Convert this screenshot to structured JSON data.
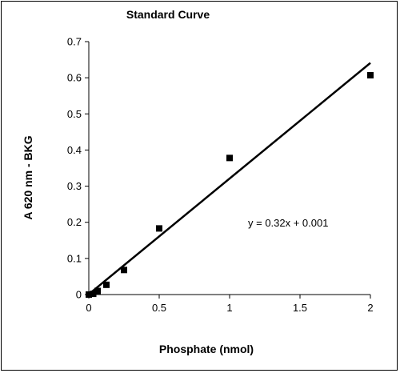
{
  "chart_data": {
    "type": "scatter",
    "title": "Standard Curve",
    "xlabel": "Phosphate (nmol)",
    "ylabel": "A 620 nm - BKG",
    "xlim": [
      0,
      2
    ],
    "ylim": [
      0,
      0.7
    ],
    "x_ticks": [
      "0",
      "0.5",
      "1",
      "1.5",
      "2"
    ],
    "y_ticks": [
      "0",
      "0.1",
      "0.2",
      "0.3",
      "0.4",
      "0.5",
      "0.6",
      "0.7"
    ],
    "grid": false,
    "legend": "none",
    "series": [
      {
        "marker": "square",
        "color": "#000000",
        "x": [
          0,
          0.03125,
          0.0625,
          0.125,
          0.25,
          0.5,
          1,
          2
        ],
        "y": [
          0.0,
          0.002,
          0.01,
          0.027,
          0.068,
          0.183,
          0.378,
          0.607
        ]
      }
    ],
    "trendline": {
      "slope": 0.32,
      "intercept": 0.001,
      "color": "#000000"
    },
    "annotation": "y = 0.32x + 0.001"
  }
}
